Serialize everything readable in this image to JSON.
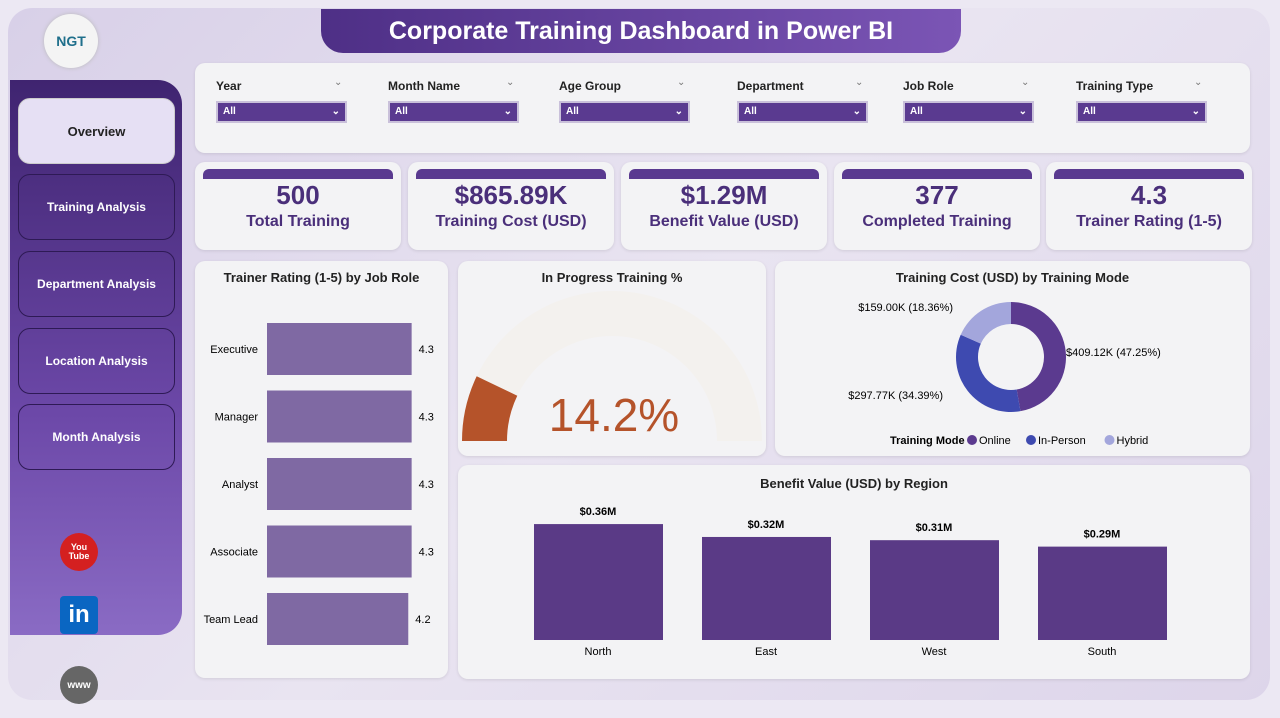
{
  "title": "Corporate Training Dashboard in Power BI",
  "logo": "NGT",
  "nav": [
    "Overview",
    "Training Analysis",
    "Department Analysis",
    "Location Analysis",
    "Month Analysis"
  ],
  "social": {
    "youtube": "You Tube",
    "linkedin": "in",
    "web": "www"
  },
  "filters": [
    {
      "label": "Year",
      "value": "All"
    },
    {
      "label": "Month Name",
      "value": "All"
    },
    {
      "label": "Age Group",
      "value": "All"
    },
    {
      "label": "Department",
      "value": "All"
    },
    {
      "label": "Job Role",
      "value": "All"
    },
    {
      "label": "Training Type",
      "value": "All"
    }
  ],
  "kpis": [
    {
      "value": "500",
      "label": "Total Training"
    },
    {
      "value": "$865.89K",
      "label": "Training Cost (USD)"
    },
    {
      "value": "$1.29M",
      "label": "Benefit Value (USD)"
    },
    {
      "value": "377",
      "label": "Completed Training"
    },
    {
      "value": "4.3",
      "label": "Trainer Rating (1-5)"
    }
  ],
  "chart_data": [
    {
      "type": "bar",
      "orientation": "horizontal",
      "title": "Trainer Rating (1-5) by Job Role",
      "categories": [
        "Executive",
        "Manager",
        "Analyst",
        "Associate",
        "Team Lead"
      ],
      "values": [
        4.3,
        4.3,
        4.3,
        4.3,
        4.2
      ],
      "labels": [
        "4.3",
        "4.3",
        "4.3",
        "4.3",
        "4.2"
      ],
      "color": "#7f69a3"
    },
    {
      "type": "gauge",
      "title": "In Progress Training %",
      "value": 14.2,
      "label": "14.2%",
      "max": 100,
      "color": "#b5532a"
    },
    {
      "type": "pie",
      "donut": true,
      "title": "Training Cost (USD) by Training Mode",
      "legend_title": "Training Mode",
      "legend": "bottom",
      "slices": [
        {
          "name": "Online",
          "value": 409.12,
          "label": "$409.12K (47.25%)",
          "color": "#5b3a8f"
        },
        {
          "name": "In-Person",
          "value": 297.77,
          "label": "$297.77K (34.39%)",
          "color": "#3e4ab0"
        },
        {
          "name": "Hybrid",
          "value": 159.0,
          "label": "$159.00K (18.36%)",
          "color": "#a3a6dc"
        }
      ]
    },
    {
      "type": "bar",
      "title": "Benefit Value (USD) by Region",
      "categories": [
        "North",
        "East",
        "West",
        "South"
      ],
      "values": [
        0.36,
        0.32,
        0.31,
        0.29
      ],
      "labels": [
        "$0.36M",
        "$0.32M",
        "$0.31M",
        "$0.29M"
      ],
      "color": "#5a3a86"
    }
  ]
}
